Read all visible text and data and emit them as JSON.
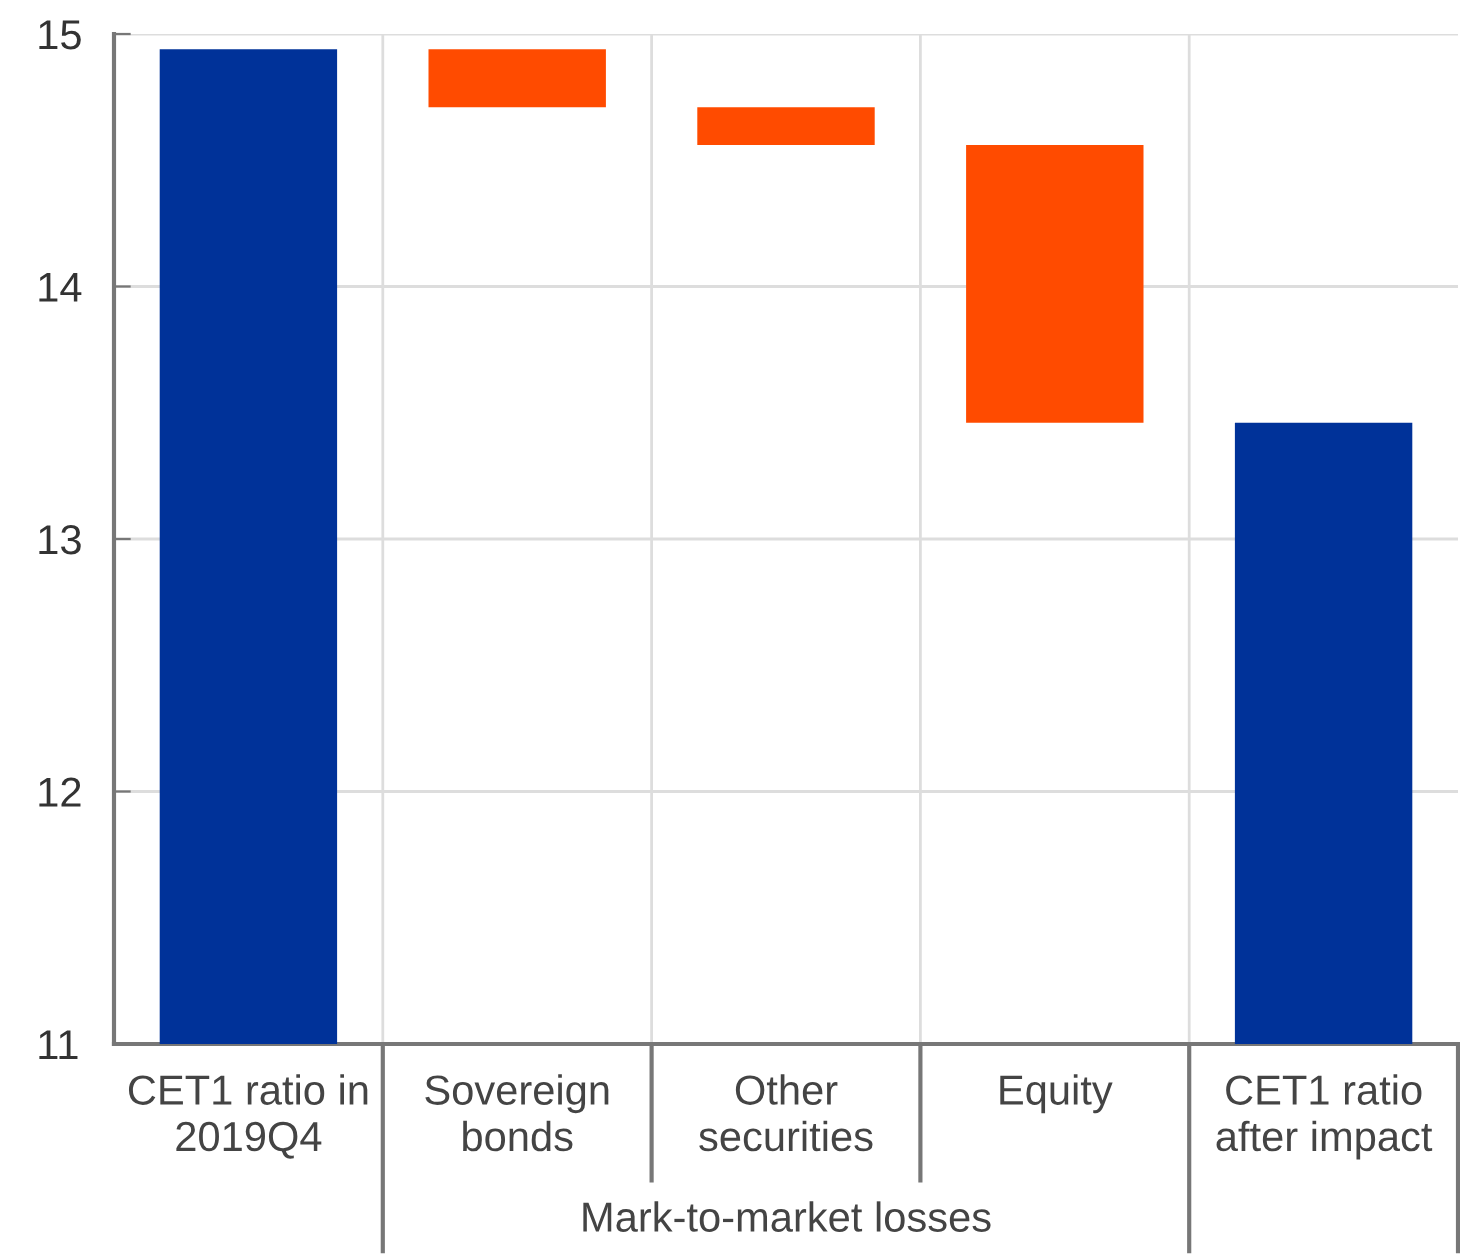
{
  "chart_data": {
    "type": "bar",
    "categories": [
      "CET1 ratio in\n2019Q4",
      "Sovereign\nbonds",
      "Other\nsecurities",
      "Equity",
      "CET1 ratio\nafter impact"
    ],
    "values": [
      14.94,
      -0.23,
      -0.15,
      -1.1,
      13.46
    ],
    "base": [
      null,
      14.94,
      14.71,
      14.56,
      null
    ],
    "colors": [
      "#003299",
      "#ff4b00",
      "#ff4b00",
      "#ff4b00",
      "#003299"
    ],
    "ylim": [
      11,
      15
    ],
    "yticks": [
      11,
      12,
      13,
      14,
      15
    ],
    "grid": true,
    "annotations": [
      "Mark-to-market losses"
    ]
  }
}
